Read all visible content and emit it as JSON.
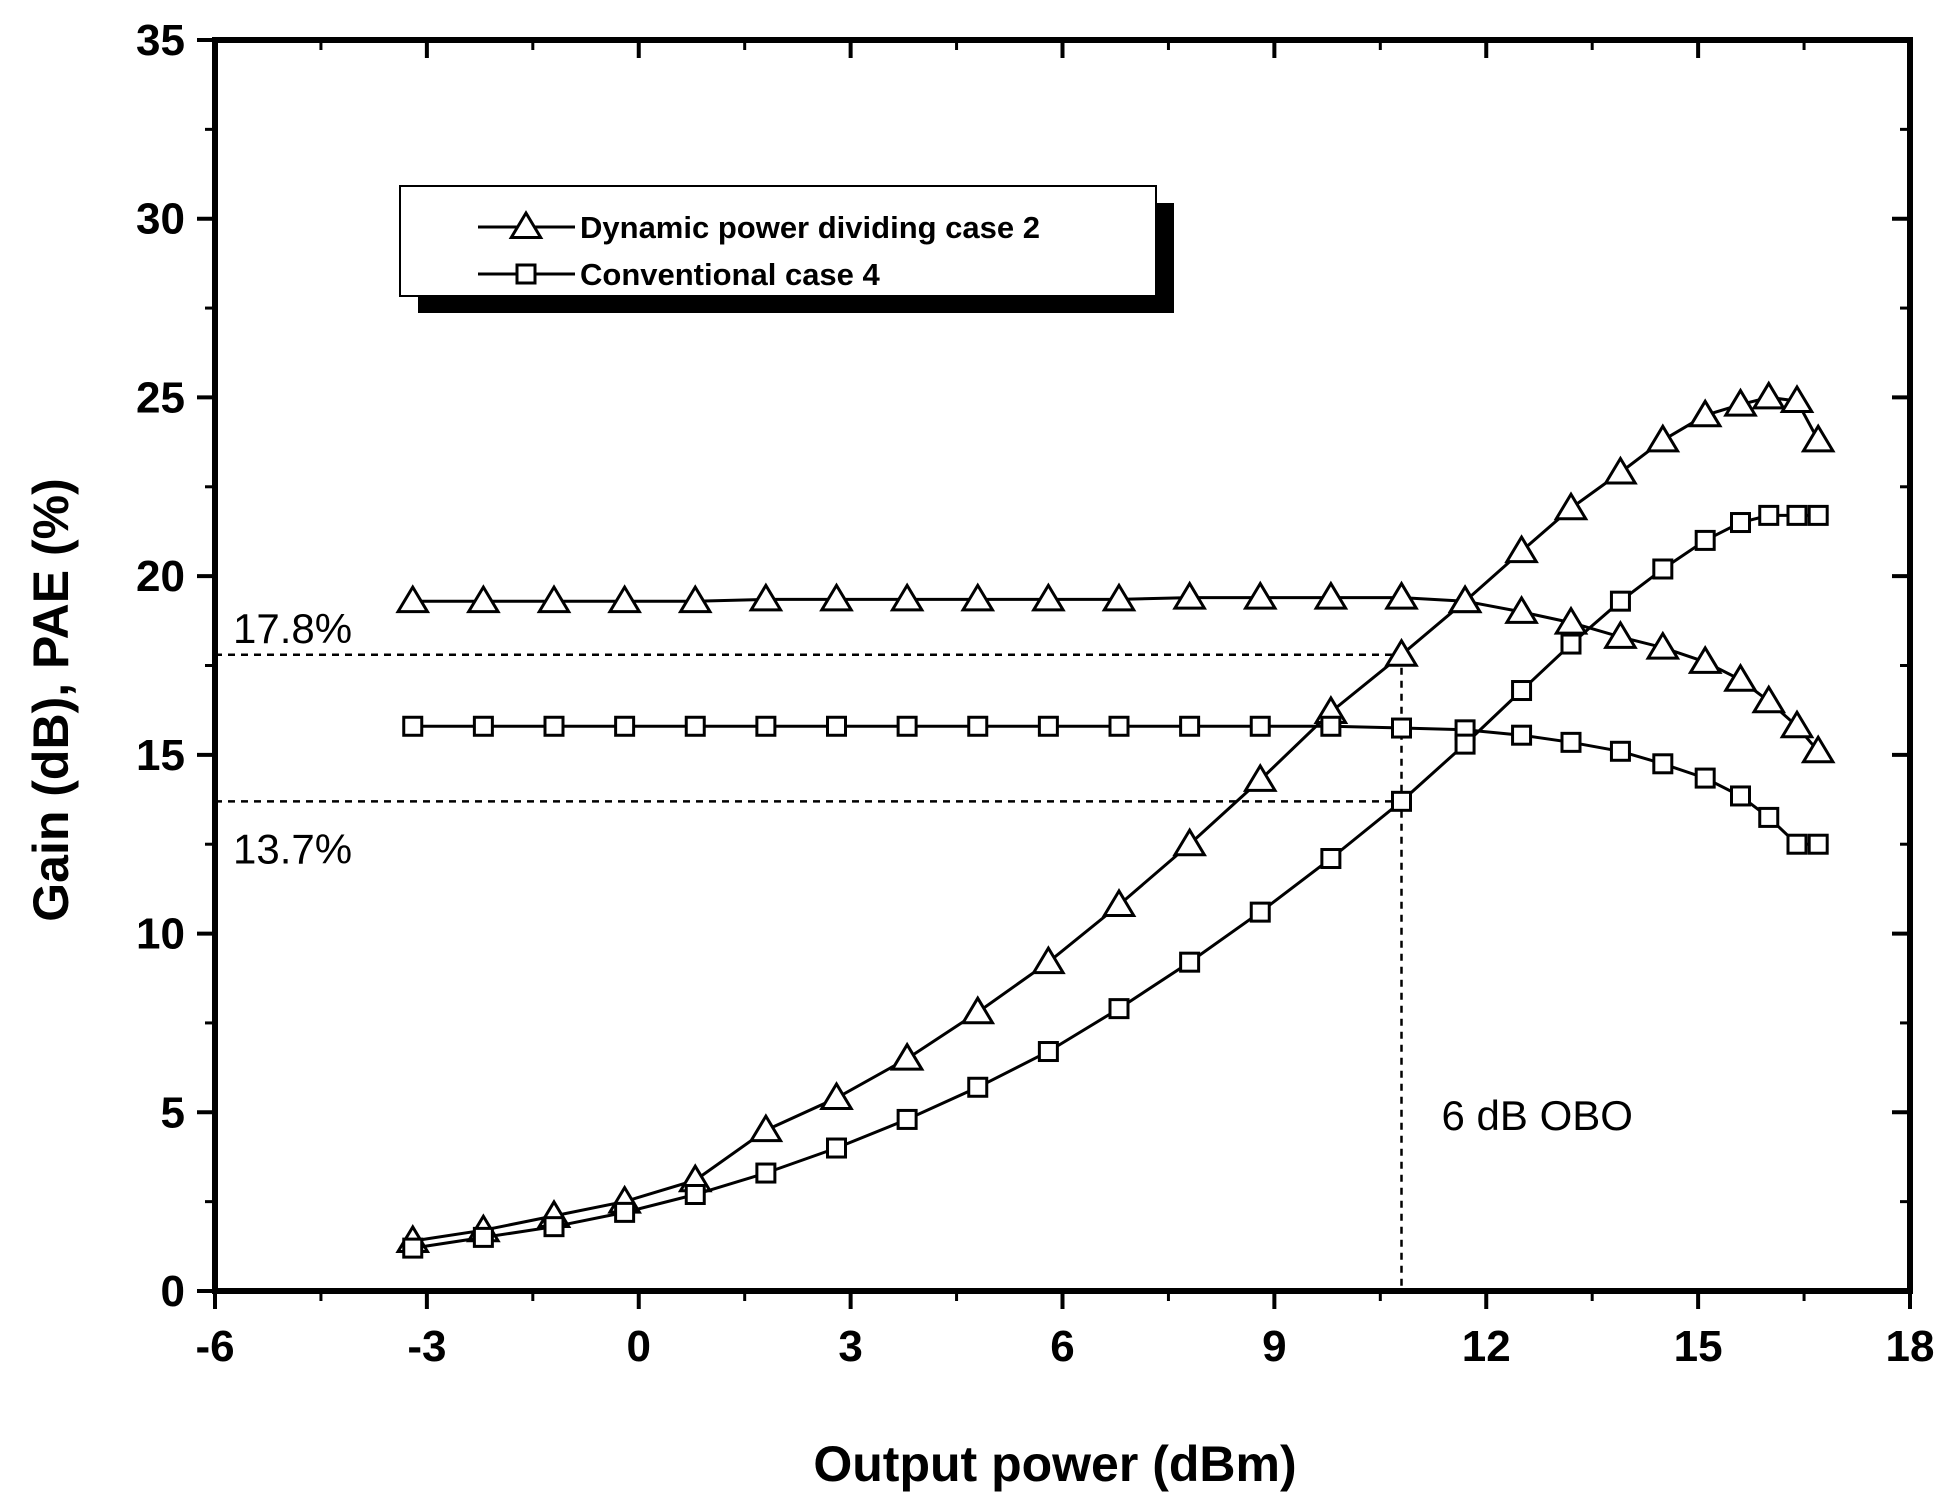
{
  "chart_data": {
    "type": "line",
    "xlabel": "Output power (dBm)",
    "ylabel": "Gain (dB), PAE (%)",
    "xlim": [
      -6,
      18
    ],
    "ylim": [
      0,
      35
    ],
    "xticks": [
      -6,
      -3,
      0,
      3,
      6,
      9,
      12,
      15,
      18
    ],
    "yticks": [
      0,
      5,
      10,
      15,
      20,
      25,
      30,
      35
    ],
    "grid": false,
    "legend_position": "top-left",
    "series": [
      {
        "name": "Dynamic power dividing case 2",
        "marker": "triangle",
        "curves": [
          {
            "label": "Gain",
            "x": [
              -3.2,
              -2.2,
              -1.2,
              -0.2,
              0.8,
              1.8,
              2.8,
              3.8,
              4.8,
              5.8,
              6.8,
              7.8,
              8.8,
              9.8,
              10.8,
              11.7,
              12.5,
              13.2,
              13.9,
              14.5,
              15.1,
              15.6,
              16.0,
              16.4,
              16.7
            ],
            "y": [
              19.3,
              19.3,
              19.3,
              19.3,
              19.3,
              19.35,
              19.35,
              19.35,
              19.35,
              19.35,
              19.35,
              19.4,
              19.4,
              19.4,
              19.4,
              19.3,
              19.0,
              18.7,
              18.3,
              18.0,
              17.6,
              17.1,
              16.5,
              15.8,
              15.1
            ]
          },
          {
            "label": "PAE",
            "x": [
              -3.2,
              -2.2,
              -1.2,
              -0.2,
              0.8,
              1.8,
              2.8,
              3.8,
              4.8,
              5.8,
              6.8,
              7.8,
              8.8,
              9.8,
              10.8,
              11.7,
              12.5,
              13.2,
              13.9,
              14.5,
              15.1,
              15.6,
              16.0,
              16.4,
              16.7
            ],
            "y": [
              1.4,
              1.7,
              2.1,
              2.5,
              3.1,
              4.5,
              5.4,
              6.5,
              7.8,
              9.2,
              10.8,
              12.5,
              14.3,
              16.2,
              17.8,
              19.3,
              20.7,
              21.9,
              22.9,
              23.8,
              24.5,
              24.8,
              25.0,
              24.9,
              23.8
            ]
          }
        ]
      },
      {
        "name": "Conventional case 4",
        "marker": "square",
        "curves": [
          {
            "label": "Gain",
            "x": [
              -3.2,
              -2.2,
              -1.2,
              -0.2,
              0.8,
              1.8,
              2.8,
              3.8,
              4.8,
              5.8,
              6.8,
              7.8,
              8.8,
              9.8,
              10.8,
              11.7,
              12.5,
              13.2,
              13.9,
              14.5,
              15.1,
              15.6,
              16.0,
              16.4,
              16.7
            ],
            "y": [
              15.8,
              15.8,
              15.8,
              15.8,
              15.8,
              15.8,
              15.8,
              15.8,
              15.8,
              15.8,
              15.8,
              15.8,
              15.8,
              15.8,
              15.75,
              15.7,
              15.55,
              15.35,
              15.1,
              14.75,
              14.35,
              13.85,
              13.25,
              12.5,
              12.5
            ]
          },
          {
            "label": "PAE",
            "x": [
              -3.2,
              -2.2,
              -1.2,
              -0.2,
              0.8,
              1.8,
              2.8,
              3.8,
              4.8,
              5.8,
              6.8,
              7.8,
              8.8,
              9.8,
              10.8,
              11.7,
              12.5,
              13.2,
              13.9,
              14.5,
              15.1,
              15.6,
              16.0,
              16.4,
              16.7
            ],
            "y": [
              1.2,
              1.5,
              1.8,
              2.2,
              2.7,
              3.3,
              4.0,
              4.8,
              5.7,
              6.7,
              7.9,
              9.2,
              10.6,
              12.1,
              13.7,
              15.3,
              16.8,
              18.1,
              19.3,
              20.2,
              21.0,
              21.5,
              21.7,
              21.7,
              21.7
            ]
          }
        ]
      }
    ],
    "annotations": {
      "pae_high_label": "17.8%",
      "pae_high_value": 17.8,
      "pae_low_label": "13.7%",
      "pae_low_value": 13.7,
      "obo_label": "6 dB OBO",
      "obo_x": 10.8
    }
  }
}
